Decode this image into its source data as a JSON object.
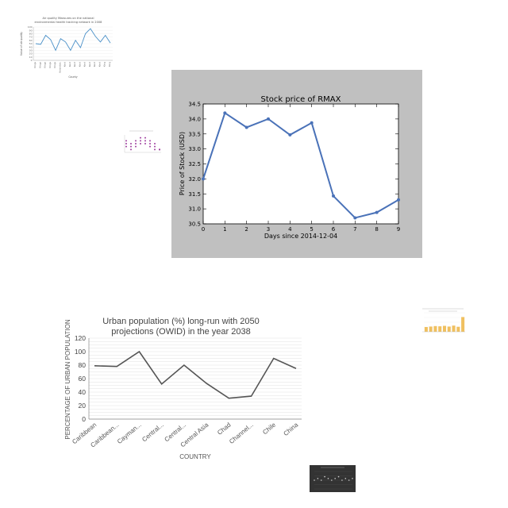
{
  "chart_data": [
    {
      "id": "air-quality",
      "type": "line",
      "title": "Air quality Measures on the national environmental health tracking network in 2008",
      "xlabel": "County",
      "ylabel": "Value of air quality",
      "categories": [
        "Kings",
        "Kings",
        "Kings",
        "Kings",
        "Kings",
        "Kennebec",
        "Kent",
        "Kent",
        "Kent",
        "Kent",
        "Kent",
        "Kent",
        "Kent",
        "Kent",
        "King",
        "King"
      ],
      "values": [
        50,
        48,
        75,
        62,
        30,
        65,
        55,
        30,
        60,
        38,
        80,
        95,
        72,
        55,
        75,
        52
      ],
      "ylim": [
        0,
        100
      ],
      "yticks": [
        0,
        10,
        20,
        30,
        40,
        50,
        60,
        70,
        80,
        90,
        100
      ],
      "color": "#4a90c8",
      "grid": true
    },
    {
      "id": "purple-scatter",
      "type": "scatter",
      "title": "",
      "xlabel": "",
      "ylabel": "",
      "categories": [
        "",
        "",
        "",
        "",
        "",
        "",
        "",
        ""
      ],
      "series": [
        {
          "values": [
            2,
            1,
            2,
            3,
            3,
            2,
            1,
            1
          ]
        },
        {
          "values": [
            3,
            2,
            3,
            4,
            4,
            3,
            2,
            1
          ]
        },
        {
          "values": [
            4,
            3,
            4,
            5,
            5,
            4,
            3,
            1
          ]
        }
      ],
      "ylim": [
        0,
        6
      ],
      "color": "#a040a0",
      "grid": false
    },
    {
      "id": "rmax",
      "type": "line",
      "title": "Stock price of RMAX",
      "xlabel": "Days since 2014-12-04",
      "ylabel": "Price of Stock (USD)",
      "x": [
        0,
        1,
        2,
        3,
        4,
        5,
        6,
        7,
        8,
        9
      ],
      "values": [
        32.0,
        34.2,
        33.72,
        34.0,
        33.47,
        33.87,
        31.43,
        30.7,
        30.88,
        31.3
      ],
      "xlim": [
        0,
        9
      ],
      "ylim": [
        30.5,
        34.5
      ],
      "xticks": [
        "0",
        "1",
        "2",
        "3",
        "4",
        "5",
        "6",
        "7",
        "8",
        "9"
      ],
      "yticks": [
        "30.5",
        "31.0",
        "31.5",
        "32.0",
        "32.5",
        "33.0",
        "33.5",
        "34.0",
        "34.5"
      ],
      "color": "#4a72b8",
      "background": "#c0c0c0",
      "grid": false
    },
    {
      "id": "urban",
      "type": "line",
      "title": "Urban population (%) long-run with 2050 projections (OWID) in the year 2038",
      "xlabel": "COUNTRY",
      "ylabel": "PERCENTAGE OF URBAN POPULATION",
      "categories": [
        "Caribbean",
        "Caribbean...",
        "Cayman...",
        "Central...",
        "Central...",
        "Central Asia",
        "Chad",
        "Channel...",
        "Chile",
        "China"
      ],
      "values": [
        79,
        78,
        100,
        52,
        80,
        53,
        31,
        34,
        90,
        75
      ],
      "ylim": [
        0,
        120
      ],
      "yticks": [
        "0",
        "20",
        "40",
        "60",
        "80",
        "100",
        "120"
      ],
      "color": "#555555",
      "grid": true
    },
    {
      "id": "orange-bars",
      "type": "bar",
      "title": "",
      "xlabel": "",
      "ylabel": "",
      "categories": [
        "",
        "",
        "",
        "",
        "",
        "",
        "",
        "",
        ""
      ],
      "values": [
        20,
        22,
        24,
        23,
        25,
        22,
        26,
        21,
        62
      ],
      "ylim": [
        0,
        80
      ],
      "color": "#f0c060",
      "grid": true
    },
    {
      "id": "dark-scatter",
      "type": "scatter",
      "title": "",
      "xlabel": "",
      "ylabel": "",
      "categories": [
        "",
        "",
        "",
        "",
        "",
        "",
        "",
        "",
        "",
        "",
        "",
        ""
      ],
      "values": [
        5,
        6,
        5,
        7,
        6,
        5,
        6,
        7,
        5,
        6,
        5,
        6
      ],
      "ylim": [
        0,
        10
      ],
      "color": "#cccccc",
      "background": "#333333",
      "grid": true
    }
  ]
}
